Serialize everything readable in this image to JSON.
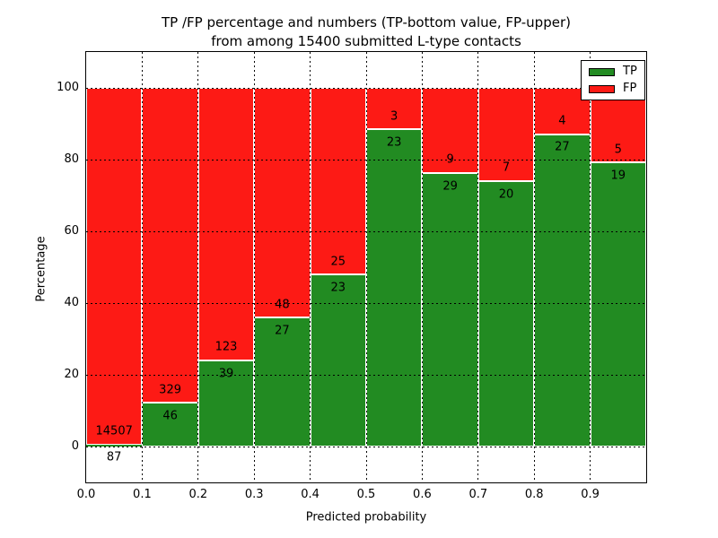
{
  "figure": {
    "title_line1": "TP /FP percentage and numbers (TP-bottom value, FP-upper)",
    "title_line2": "from among 15400 submitted L-type contacts"
  },
  "chart_data": {
    "type": "bar",
    "variant": "stacked-percentage-histogram",
    "title": "TP /FP percentage and numbers (TP-bottom value, FP-upper)\nfrom among 15400 submitted L-type contacts",
    "xlabel": "Predicted probability",
    "ylabel": "Percentage",
    "total_submitted": 15400,
    "xlim": [
      0.0,
      1.0
    ],
    "ylim": [
      -10,
      110
    ],
    "bin_edges": [
      0.0,
      0.1,
      0.2,
      0.3,
      0.4,
      0.5,
      0.6,
      0.7,
      0.8,
      0.9,
      1.0
    ],
    "categories": [
      "0.0-0.1",
      "0.1-0.2",
      "0.2-0.3",
      "0.3-0.4",
      "0.4-0.5",
      "0.5-0.6",
      "0.6-0.7",
      "0.7-0.8",
      "0.8-0.9",
      "0.9-1.0"
    ],
    "x_tick_labels": [
      "0.0",
      "0.1",
      "0.2",
      "0.3",
      "0.4",
      "0.5",
      "0.6",
      "0.7",
      "0.8",
      "0.9"
    ],
    "y_ticks": [
      0,
      20,
      40,
      60,
      80,
      100
    ],
    "y_tick_labels": [
      "0",
      "20",
      "40",
      "60",
      "80",
      "100"
    ],
    "grid": {
      "on": true,
      "linestyle": "dotted",
      "color": "#000000"
    },
    "legend": {
      "position": "upper-right",
      "entries": [
        {
          "label": "TP",
          "color": "#228b22"
        },
        {
          "label": "FP",
          "color": "#fd1a15"
        }
      ]
    },
    "series": [
      {
        "name": "TP",
        "color": "#228b22",
        "counts": [
          87,
          46,
          39,
          27,
          23,
          23,
          29,
          20,
          27,
          19
        ]
      },
      {
        "name": "FP",
        "color": "#fd1a15",
        "counts": [
          14507,
          329,
          123,
          48,
          25,
          3,
          9,
          7,
          4,
          5
        ]
      }
    ],
    "tp_percent_of_bin": [
      0.6,
      12.27,
      24.07,
      36.0,
      47.92,
      88.46,
      76.32,
      74.07,
      87.1,
      79.17
    ]
  }
}
